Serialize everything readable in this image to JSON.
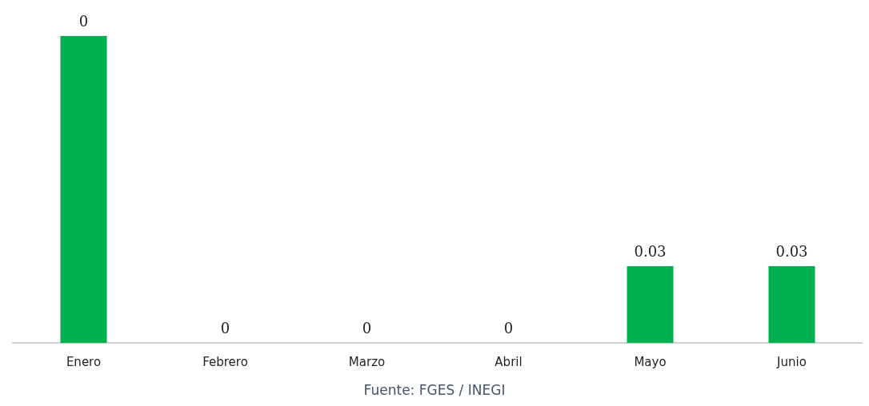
{
  "chart_data": {
    "type": "bar",
    "categories": [
      "Enero",
      "Febrero",
      "Marzo",
      "Abril",
      "Mayo",
      "Junio"
    ],
    "values": [
      0.12,
      0,
      0,
      0,
      0.03,
      0.03
    ],
    "value_labels": [
      "0",
      "0",
      "0",
      "0",
      "0.03",
      "0.03"
    ],
    "color": "#00b050",
    "annotations": [
      "Fuente: FGES / INEGI"
    ]
  }
}
